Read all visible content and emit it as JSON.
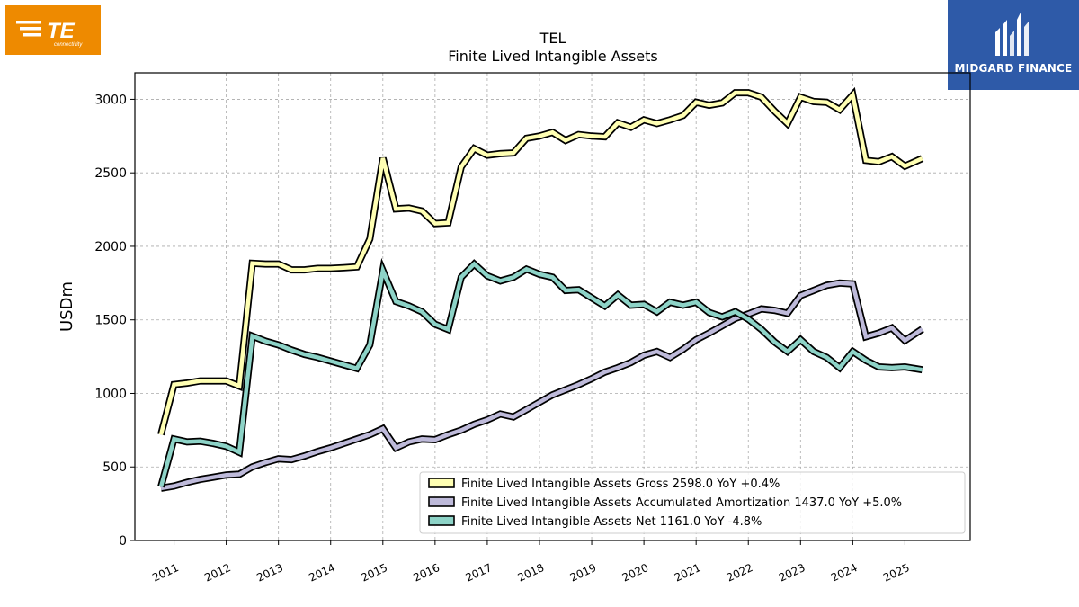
{
  "branding": {
    "left_logo_text": "TE",
    "left_logo_subtext": "connectivity",
    "left_logo_color": "#ee8a00",
    "right_logo_text": "MIDGARD FINANCE",
    "right_logo_color": "#2e5aa8"
  },
  "chart_data": {
    "type": "line",
    "title": "TEL",
    "subtitle": "Finite Lived Intangible Assets",
    "ylabel": "USDm",
    "xlabel": "",
    "ylim": [
      0,
      3180
    ],
    "xlim": [
      2010.25,
      2026.25
    ],
    "yticks": [
      0,
      500,
      1000,
      1500,
      2000,
      2500,
      3000
    ],
    "xticks": [
      2011,
      2012,
      2013,
      2014,
      2015,
      2016,
      2017,
      2018,
      2019,
      2020,
      2021,
      2022,
      2023,
      2024,
      2025
    ],
    "grid": true,
    "legend_position": "lower-right",
    "series": [
      {
        "name": "Finite Lived Intangible Assets Gross",
        "legend_label": "Finite Lived Intangible Assets Gross  2598.0 YoY +0.4%",
        "color": "#ffffb3",
        "points": [
          [
            2010.75,
            720
          ],
          [
            2011.0,
            1060
          ],
          [
            2011.25,
            1070
          ],
          [
            2011.5,
            1085
          ],
          [
            2011.75,
            1085
          ],
          [
            2012.0,
            1085
          ],
          [
            2012.25,
            1050
          ],
          [
            2012.5,
            1885
          ],
          [
            2012.75,
            1880
          ],
          [
            2013.0,
            1880
          ],
          [
            2013.25,
            1840
          ],
          [
            2013.5,
            1840
          ],
          [
            2013.75,
            1850
          ],
          [
            2014.0,
            1850
          ],
          [
            2014.25,
            1855
          ],
          [
            2014.5,
            1860
          ],
          [
            2014.75,
            2050
          ],
          [
            2015.0,
            2600
          ],
          [
            2015.25,
            2255
          ],
          [
            2015.5,
            2260
          ],
          [
            2015.75,
            2240
          ],
          [
            2016.0,
            2155
          ],
          [
            2016.25,
            2160
          ],
          [
            2016.5,
            2540
          ],
          [
            2016.75,
            2665
          ],
          [
            2017.0,
            2620
          ],
          [
            2017.25,
            2630
          ],
          [
            2017.5,
            2635
          ],
          [
            2017.75,
            2735
          ],
          [
            2018.0,
            2750
          ],
          [
            2018.25,
            2775
          ],
          [
            2018.5,
            2720
          ],
          [
            2018.75,
            2760
          ],
          [
            2019.0,
            2750
          ],
          [
            2019.25,
            2745
          ],
          [
            2019.5,
            2840
          ],
          [
            2019.75,
            2810
          ],
          [
            2020.0,
            2860
          ],
          [
            2020.25,
            2835
          ],
          [
            2020.5,
            2860
          ],
          [
            2020.75,
            2890
          ],
          [
            2021.0,
            2980
          ],
          [
            2021.25,
            2960
          ],
          [
            2021.5,
            2975
          ],
          [
            2021.75,
            3045
          ],
          [
            2022.0,
            3045
          ],
          [
            2022.25,
            3015
          ],
          [
            2022.5,
            2920
          ],
          [
            2022.75,
            2835
          ],
          [
            2023.0,
            3015
          ],
          [
            2023.25,
            2985
          ],
          [
            2023.5,
            2980
          ],
          [
            2023.75,
            2930
          ],
          [
            2024.0,
            3030
          ],
          [
            2024.25,
            2585
          ],
          [
            2024.5,
            2575
          ],
          [
            2024.75,
            2610
          ],
          [
            2025.0,
            2545
          ],
          [
            2025.33,
            2598
          ]
        ]
      },
      {
        "name": "Finite Lived Intangible Assets Accumulated Amortization",
        "legend_label": "Finite Lived Intangible Assets Accumulated Amortization  1437.0 YoY +5.0%",
        "color": "#bebada",
        "points": [
          [
            2010.75,
            355
          ],
          [
            2011.0,
            370
          ],
          [
            2011.25,
            395
          ],
          [
            2011.5,
            415
          ],
          [
            2011.75,
            430
          ],
          [
            2012.0,
            445
          ],
          [
            2012.25,
            450
          ],
          [
            2012.5,
            500
          ],
          [
            2012.75,
            530
          ],
          [
            2013.0,
            555
          ],
          [
            2013.25,
            550
          ],
          [
            2013.5,
            575
          ],
          [
            2013.75,
            605
          ],
          [
            2014.0,
            630
          ],
          [
            2014.25,
            660
          ],
          [
            2014.5,
            690
          ],
          [
            2014.75,
            720
          ],
          [
            2015.0,
            760
          ],
          [
            2015.25,
            630
          ],
          [
            2015.5,
            670
          ],
          [
            2015.75,
            690
          ],
          [
            2016.0,
            685
          ],
          [
            2016.25,
            720
          ],
          [
            2016.5,
            750
          ],
          [
            2016.75,
            790
          ],
          [
            2017.0,
            820
          ],
          [
            2017.25,
            860
          ],
          [
            2017.5,
            840
          ],
          [
            2017.75,
            890
          ],
          [
            2018.0,
            940
          ],
          [
            2018.25,
            990
          ],
          [
            2018.5,
            1025
          ],
          [
            2018.75,
            1060
          ],
          [
            2019.0,
            1100
          ],
          [
            2019.25,
            1145
          ],
          [
            2019.5,
            1175
          ],
          [
            2019.75,
            1210
          ],
          [
            2020.0,
            1260
          ],
          [
            2020.25,
            1285
          ],
          [
            2020.5,
            1245
          ],
          [
            2020.75,
            1300
          ],
          [
            2021.0,
            1365
          ],
          [
            2021.25,
            1410
          ],
          [
            2021.5,
            1460
          ],
          [
            2021.75,
            1510
          ],
          [
            2022.0,
            1540
          ],
          [
            2022.25,
            1575
          ],
          [
            2022.5,
            1565
          ],
          [
            2022.75,
            1545
          ],
          [
            2023.0,
            1665
          ],
          [
            2023.25,
            1700
          ],
          [
            2023.5,
            1735
          ],
          [
            2023.75,
            1750
          ],
          [
            2024.0,
            1745
          ],
          [
            2024.25,
            1385
          ],
          [
            2024.5,
            1410
          ],
          [
            2024.75,
            1445
          ],
          [
            2025.0,
            1360
          ],
          [
            2025.33,
            1437
          ]
        ]
      },
      {
        "name": "Finite Lived Intangible Assets Net",
        "legend_label": "Finite Lived Intangible Assets Net  1161.0 YoY -4.8%",
        "color": "#8dd3c7",
        "points": [
          [
            2010.75,
            365
          ],
          [
            2011.0,
            690
          ],
          [
            2011.25,
            670
          ],
          [
            2011.5,
            675
          ],
          [
            2011.75,
            660
          ],
          [
            2012.0,
            640
          ],
          [
            2012.25,
            600
          ],
          [
            2012.5,
            1390
          ],
          [
            2012.75,
            1355
          ],
          [
            2013.0,
            1330
          ],
          [
            2013.25,
            1295
          ],
          [
            2013.5,
            1265
          ],
          [
            2013.75,
            1245
          ],
          [
            2014.0,
            1220
          ],
          [
            2014.25,
            1195
          ],
          [
            2014.5,
            1170
          ],
          [
            2014.75,
            1330
          ],
          [
            2015.0,
            1835
          ],
          [
            2015.25,
            1625
          ],
          [
            2015.5,
            1595
          ],
          [
            2015.75,
            1555
          ],
          [
            2016.0,
            1470
          ],
          [
            2016.25,
            1435
          ],
          [
            2016.5,
            1790
          ],
          [
            2016.75,
            1880
          ],
          [
            2017.0,
            1800
          ],
          [
            2017.25,
            1765
          ],
          [
            2017.5,
            1790
          ],
          [
            2017.75,
            1845
          ],
          [
            2018.0,
            1810
          ],
          [
            2018.25,
            1790
          ],
          [
            2018.5,
            1700
          ],
          [
            2018.75,
            1705
          ],
          [
            2019.0,
            1650
          ],
          [
            2019.25,
            1595
          ],
          [
            2019.5,
            1670
          ],
          [
            2019.75,
            1600
          ],
          [
            2020.0,
            1605
          ],
          [
            2020.25,
            1555
          ],
          [
            2020.5,
            1620
          ],
          [
            2020.75,
            1600
          ],
          [
            2021.0,
            1620
          ],
          [
            2021.25,
            1550
          ],
          [
            2021.5,
            1520
          ],
          [
            2021.75,
            1555
          ],
          [
            2022.0,
            1505
          ],
          [
            2022.25,
            1435
          ],
          [
            2022.5,
            1350
          ],
          [
            2022.75,
            1285
          ],
          [
            2023.0,
            1365
          ],
          [
            2023.25,
            1285
          ],
          [
            2023.5,
            1245
          ],
          [
            2023.75,
            1175
          ],
          [
            2024.0,
            1285
          ],
          [
            2024.25,
            1225
          ],
          [
            2024.5,
            1180
          ],
          [
            2024.75,
            1175
          ],
          [
            2025.0,
            1180
          ],
          [
            2025.33,
            1161
          ]
        ]
      }
    ]
  }
}
